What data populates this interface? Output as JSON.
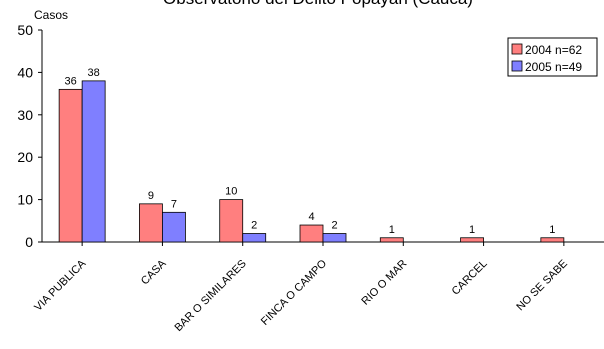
{
  "chart_data": {
    "type": "bar",
    "title": "Observatorio del Delito Popayán (Cauca)",
    "ylabel": "Casos",
    "xlabel": "",
    "ylim": [
      0,
      50
    ],
    "yticks": [
      0,
      10,
      20,
      30,
      40,
      50
    ],
    "grid": false,
    "legend_position": "top-right",
    "categories": [
      "VIA PUBLICA",
      "CASA",
      "BAR O SIMILARES",
      "FINCA O CAMPO",
      "RIO O MAR",
      "CARCEL",
      "NO SE SABE"
    ],
    "series": [
      {
        "name": "2004 n=62",
        "color": "#ff7f7f",
        "values": [
          36,
          9,
          10,
          4,
          1,
          1,
          1
        ],
        "labels": [
          "36",
          "9",
          "10",
          "4",
          "1",
          "1",
          "1"
        ]
      },
      {
        "name": "2005 n=49",
        "color": "#7f7fff",
        "values": [
          38,
          7,
          2,
          2,
          null,
          null,
          null
        ],
        "labels": [
          "38",
          "7",
          "2",
          "2",
          "",
          "",
          ""
        ]
      }
    ]
  }
}
